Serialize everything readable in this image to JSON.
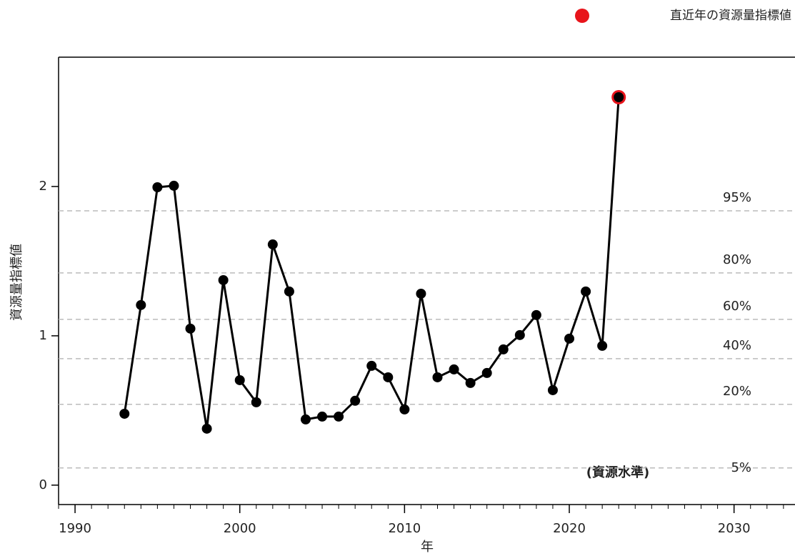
{
  "chart_data": {
    "type": "line",
    "xlabel": "年",
    "ylabel": "資源量指標値",
    "x": [
      1993,
      1994,
      1995,
      1996,
      1997,
      1998,
      1999,
      2000,
      2001,
      2002,
      2003,
      2004,
      2005,
      2006,
      2007,
      2008,
      2009,
      2010,
      2011,
      2012,
      2013,
      2014,
      2015,
      2016,
      2017,
      2018,
      2019,
      2020,
      2021,
      2022,
      2023
    ],
    "values": [
      0.478,
      1.206,
      1.995,
      2.005,
      1.048,
      0.378,
      1.373,
      0.703,
      0.555,
      1.612,
      1.297,
      0.44,
      0.459,
      0.459,
      0.565,
      0.799,
      0.722,
      0.507,
      1.282,
      0.722,
      0.775,
      0.684,
      0.751,
      0.909,
      1.005,
      1.139,
      0.636,
      0.981,
      1.297,
      0.933,
      2.598
    ],
    "color": "#000000",
    "highlight": {
      "name": "直近年の資源量指標値",
      "color": "#e8141b",
      "x": 2023,
      "value": 2.598
    },
    "reference_lines": [
      {
        "label": "95%",
        "value": 1.837
      },
      {
        "label": "80%",
        "value": 1.421
      },
      {
        "label": "60%",
        "value": 1.11
      },
      {
        "label": "40%",
        "value": 0.847
      },
      {
        "label": "20%",
        "value": 0.541
      },
      {
        "label": "5%",
        "value": 0.115
      }
    ],
    "annotation": "(資源水準)",
    "xlim": [
      1989,
      2033.7
    ],
    "ylim": [
      -0.13,
      2.866
    ],
    "xticks": [
      1990,
      2000,
      2010,
      2020,
      2030
    ],
    "yticks": [
      0,
      1,
      2
    ]
  }
}
